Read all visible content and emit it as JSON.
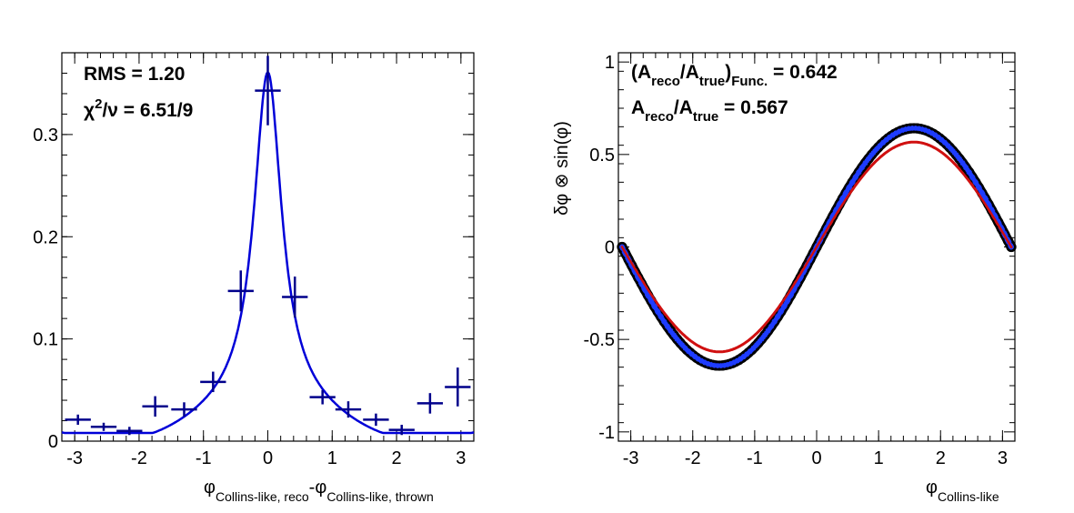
{
  "chart_data": [
    {
      "type": "scatter",
      "xlim": [
        -3.2,
        3.2
      ],
      "ylim": [
        0,
        0.38
      ],
      "x_ticks": [
        -3,
        -2,
        -1,
        0,
        1,
        2,
        3
      ],
      "x_tick_labels": [
        "-3",
        "-2",
        "-1",
        "0",
        "1",
        "2",
        "3"
      ],
      "y_ticks": [
        0,
        0.1,
        0.2,
        0.3
      ],
      "y_tick_labels": [
        "0",
        "0.1",
        "0.2",
        "0.3"
      ],
      "xlabel": {
        "phi1": "φ",
        "sub1": "Collins-like, reco",
        "minus": "-",
        "phi2": "φ",
        "sub2": "Collins-like, thrown"
      },
      "stats": {
        "rms": "RMS = 1.20",
        "chi_chi": "χ",
        "chi_sup": "2",
        "chi_nu": "/ν = 6.51/9"
      },
      "points": {
        "x": [
          -2.95,
          -2.55,
          -2.15,
          -1.75,
          -1.3,
          -0.85,
          -0.42,
          0.0,
          0.42,
          0.85,
          1.25,
          1.68,
          2.08,
          2.52,
          2.95
        ],
        "y": [
          0.021,
          0.014,
          0.01,
          0.034,
          0.031,
          0.058,
          0.147,
          0.343,
          0.141,
          0.043,
          0.031,
          0.021,
          0.011,
          0.037,
          0.053
        ],
        "yerr": [
          0.005,
          0.004,
          0.004,
          0.01,
          0.007,
          0.01,
          0.02,
          0.034,
          0.02,
          0.007,
          0.008,
          0.006,
          0.005,
          0.01,
          0.019
        ],
        "xerr": 0.2
      },
      "fit_color": "#0000d8",
      "marker_color": "#00008b"
    },
    {
      "type": "line",
      "xlim": [
        -3.2,
        3.2
      ],
      "ylim": [
        -1.05,
        1.05
      ],
      "x_ticks": [
        -3,
        -2,
        -1,
        0,
        1,
        2,
        3
      ],
      "x_tick_labels": [
        "-3",
        "-2",
        "-1",
        "0",
        "1",
        "2",
        "3"
      ],
      "y_ticks": [
        -1,
        -0.5,
        0,
        0.5,
        1
      ],
      "y_tick_labels": [
        "-1",
        "-0.5",
        "0",
        "0.5",
        "1"
      ],
      "ylabel": "δφ ⊗ sin(φ)",
      "xlabel": {
        "phi": "φ",
        "sub": "Collins-like"
      },
      "stats": {
        "line1": {
          "open": "(A",
          "s1": "reco",
          "mid": "/A",
          "s2": "true",
          "close": ")",
          "s3": "Func.",
          "val": " = 0.642"
        },
        "line2": {
          "a": "A",
          "s1": "reco",
          "mid": "/A",
          "s2": "true",
          "val": " = 0.567"
        }
      },
      "series": [
        {
          "amplitude": 0.642,
          "color": "#000000"
        },
        {
          "amplitude": 0.642,
          "color": "#1e3cff"
        },
        {
          "amplitude": 0.567,
          "color": "#d01010"
        }
      ],
      "x_range": [
        -3.1416,
        3.1416
      ]
    }
  ]
}
